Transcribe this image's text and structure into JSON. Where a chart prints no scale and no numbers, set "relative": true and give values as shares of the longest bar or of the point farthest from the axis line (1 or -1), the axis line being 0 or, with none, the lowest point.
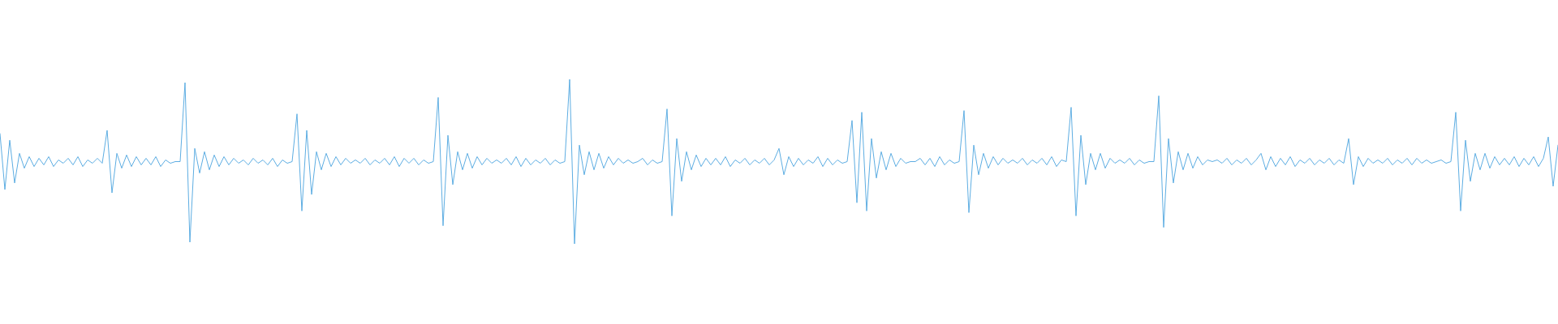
{
  "chart_data": {
    "type": "line",
    "relative": true,
    "tick_labels": false,
    "color": "#5dade2",
    "categories": [
      null,
      null,
      null,
      null,
      null,
      null,
      null,
      null,
      null,
      null,
      null,
      null,
      null,
      null,
      null,
      null,
      null,
      null,
      null,
      null,
      null,
      null,
      null,
      null,
      null,
      null,
      null,
      null,
      null,
      null,
      null,
      null,
      null,
      null,
      null,
      null,
      null,
      null,
      null,
      null,
      null,
      null,
      null,
      null,
      null,
      null,
      null,
      null,
      null,
      null,
      null,
      null,
      null,
      null,
      null,
      null,
      null,
      null,
      null,
      null,
      null,
      null,
      null,
      null,
      null,
      null,
      null,
      null,
      null,
      null,
      null,
      null,
      null,
      null,
      null,
      null,
      null,
      null,
      null,
      null,
      null,
      null,
      null,
      null,
      null,
      null,
      null,
      null,
      null,
      null,
      null,
      null,
      null,
      null,
      null,
      null,
      null,
      null,
      null,
      null,
      null,
      null,
      null,
      null,
      null,
      null,
      null,
      null,
      null,
      null,
      null,
      null,
      null,
      null,
      null,
      null,
      null,
      null,
      null,
      null,
      null,
      null,
      null,
      null,
      null,
      null,
      null,
      null,
      null,
      null,
      null,
      null,
      null,
      null,
      null,
      null,
      null,
      null,
      null,
      null,
      null,
      null,
      null,
      null,
      null,
      null,
      null,
      null,
      null,
      null,
      null,
      null,
      null,
      null,
      null,
      null,
      null,
      null,
      null,
      null,
      null,
      null,
      null,
      null,
      null,
      null,
      null,
      null,
      null,
      null,
      null,
      null,
      null,
      null,
      null,
      null,
      null,
      null,
      null,
      null,
      null,
      null,
      null,
      null,
      null,
      null,
      null,
      null,
      null,
      null,
      null,
      null,
      null,
      null,
      null,
      null,
      null,
      null,
      null,
      null,
      null,
      null,
      null,
      null,
      null,
      null,
      null,
      null,
      null,
      null,
      null,
      null,
      null,
      null,
      null,
      null,
      null,
      null,
      null,
      null,
      null,
      null,
      null,
      null,
      null,
      null,
      null,
      null,
      null,
      null,
      null,
      null,
      null,
      null,
      null,
      null,
      null,
      null,
      null,
      null,
      null,
      null,
      null,
      null,
      null,
      null,
      null,
      null,
      null,
      null,
      null,
      null,
      null,
      null,
      null,
      null,
      null,
      null,
      null,
      null,
      null,
      null,
      null,
      null,
      null,
      null,
      null,
      null,
      null,
      null,
      null,
      null,
      null,
      null,
      null,
      null,
      null,
      null,
      null,
      null,
      null,
      null,
      null,
      null,
      null,
      null,
      null,
      null,
      null,
      null,
      null,
      null,
      null,
      null,
      null,
      null,
      null,
      null,
      null,
      null,
      null,
      null,
      null,
      null,
      null,
      null,
      null,
      null,
      null,
      null,
      null,
      null,
      null,
      null,
      null,
      null,
      null,
      null,
      null,
      null,
      null
    ],
    "values": [
      0.67,
      0.33,
      0.63,
      0.37,
      0.55,
      0.46,
      0.53,
      0.47,
      0.52,
      0.48,
      0.53,
      0.47,
      0.51,
      0.49,
      0.52,
      0.48,
      0.53,
      0.47,
      0.51,
      0.49,
      0.52,
      0.49,
      0.69,
      0.31,
      0.55,
      0.46,
      0.54,
      0.47,
      0.53,
      0.48,
      0.52,
      0.48,
      0.53,
      0.47,
      0.51,
      0.49,
      0.5,
      0.5,
      0.98,
      0.01,
      0.58,
      0.43,
      0.56,
      0.45,
      0.54,
      0.47,
      0.53,
      0.48,
      0.52,
      0.49,
      0.51,
      0.48,
      0.52,
      0.49,
      0.51,
      0.48,
      0.52,
      0.47,
      0.51,
      0.49,
      0.5,
      0.79,
      0.2,
      0.69,
      0.3,
      0.56,
      0.45,
      0.55,
      0.47,
      0.53,
      0.48,
      0.52,
      0.49,
      0.51,
      0.49,
      0.52,
      0.48,
      0.51,
      0.49,
      0.52,
      0.48,
      0.53,
      0.47,
      0.52,
      0.49,
      0.52,
      0.48,
      0.51,
      0.49,
      0.5,
      0.89,
      0.11,
      0.66,
      0.36,
      0.56,
      0.45,
      0.55,
      0.46,
      0.53,
      0.48,
      0.52,
      0.49,
      0.51,
      0.49,
      0.52,
      0.48,
      0.53,
      0.47,
      0.52,
      0.48,
      0.51,
      0.49,
      0.52,
      0.48,
      0.51,
      0.49,
      0.5,
      1,
      0,
      0.6,
      0.42,
      0.56,
      0.45,
      0.55,
      0.46,
      0.53,
      0.48,
      0.52,
      0.49,
      0.51,
      0.49,
      0.5,
      0.52,
      0.48,
      0.51,
      0.49,
      0.5,
      0.82,
      0.17,
      0.64,
      0.38,
      0.56,
      0.45,
      0.54,
      0.47,
      0.52,
      0.48,
      0.52,
      0.48,
      0.53,
      0.47,
      0.51,
      0.49,
      0.52,
      0.48,
      0.51,
      0.49,
      0.52,
      0.48,
      0.51,
      0.58,
      0.42,
      0.53,
      0.47,
      0.52,
      0.48,
      0.51,
      0.49,
      0.53,
      0.47,
      0.52,
      0.48,
      0.51,
      0.49,
      0.5,
      0.75,
      0.25,
      0.8,
      0.2,
      0.64,
      0.4,
      0.56,
      0.45,
      0.55,
      0.47,
      0.52,
      0.49,
      0.5,
      0.5,
      0.52,
      0.48,
      0.52,
      0.47,
      0.53,
      0.48,
      0.51,
      0.49,
      0.5,
      0.81,
      0.19,
      0.6,
      0.42,
      0.55,
      0.46,
      0.53,
      0.48,
      0.52,
      0.49,
      0.51,
      0.49,
      0.52,
      0.48,
      0.51,
      0.49,
      0.52,
      0.48,
      0.53,
      0.47,
      0.51,
      0.5,
      0.83,
      0.17,
      0.66,
      0.36,
      0.55,
      0.45,
      0.55,
      0.46,
      0.52,
      0.49,
      0.51,
      0.49,
      0.52,
      0.48,
      0.51,
      0.49,
      0.5,
      0.5,
      0.9,
      0.1,
      0.64,
      0.37,
      0.56,
      0.45,
      0.55,
      0.46,
      0.53,
      0.48,
      0.51,
      0.5,
      0.51,
      0.49,
      0.52,
      0.48,
      0.51,
      0.49,
      0.52,
      0.48,
      0.51,
      0.55,
      0.45,
      0.53,
      0.47,
      0.52,
      0.48,
      0.53,
      0.47,
      0.51,
      0.49,
      0.52,
      0.48,
      0.51,
      0.49,
      0.52,
      0.48,
      0.51,
      0.49,
      0.64,
      0.36,
      0.53,
      0.47,
      0.52,
      0.49,
      0.51,
      0.49,
      0.52,
      0.48,
      0.51,
      0.49,
      0.52,
      0.48,
      0.52,
      0.49,
      0.51,
      0.49,
      0.5,
      0.51,
      0.49,
      0.5,
      0.8,
      0.2,
      0.63,
      0.38,
      0.55,
      0.45,
      0.55,
      0.46,
      0.53,
      0.48,
      0.52,
      0.48,
      0.53,
      0.47,
      0.52,
      0.48,
      0.53,
      0.47,
      0.52,
      0.65,
      0.35,
      0.6
    ]
  }
}
